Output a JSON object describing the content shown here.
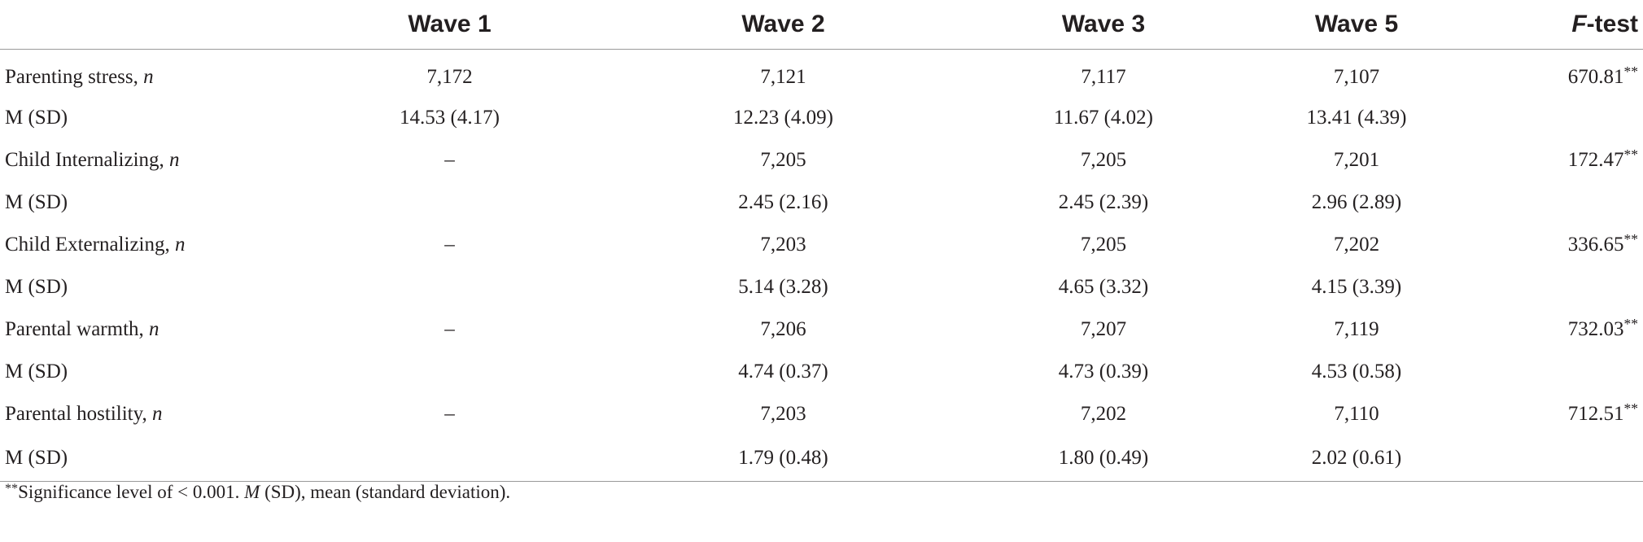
{
  "headers": {
    "wave1": "Wave 1",
    "wave2": "Wave 2",
    "wave3": "Wave 3",
    "wave5": "Wave 5",
    "ftest_italic": "F",
    "ftest_rest": "-test"
  },
  "rows": [
    {
      "label": "Parenting stress, ",
      "label_italic": "n",
      "wave1": "7,172",
      "wave2": "7,121",
      "wave3": "7,117",
      "wave5": "7,107",
      "ftest": "670.81",
      "ftest_sup": "**"
    },
    {
      "label": "M (SD)",
      "label_italic": "",
      "wave1": "14.53 (4.17)",
      "wave2": "12.23 (4.09)",
      "wave3": "11.67 (4.02)",
      "wave5": "13.41 (4.39)",
      "ftest": "",
      "ftest_sup": ""
    },
    {
      "label": "Child Internalizing, ",
      "label_italic": "n",
      "wave1": "–",
      "wave2": "7,205",
      "wave3": "7,205",
      "wave5": "7,201",
      "ftest": "172.47",
      "ftest_sup": "**"
    },
    {
      "label": "M (SD)",
      "label_italic": "",
      "wave1": "",
      "wave2": "2.45 (2.16)",
      "wave3": "2.45 (2.39)",
      "wave5": "2.96 (2.89)",
      "ftest": "",
      "ftest_sup": ""
    },
    {
      "label": "Child Externalizing, ",
      "label_italic": "n",
      "wave1": "–",
      "wave2": "7,203",
      "wave3": "7,205",
      "wave5": "7,202",
      "ftest": "336.65",
      "ftest_sup": "**"
    },
    {
      "label": "M (SD)",
      "label_italic": "",
      "wave1": "",
      "wave2": "5.14 (3.28)",
      "wave3": "4.65 (3.32)",
      "wave5": "4.15 (3.39)",
      "ftest": "",
      "ftest_sup": ""
    },
    {
      "label": "Parental warmth, ",
      "label_italic": "n",
      "wave1": "–",
      "wave2": "7,206",
      "wave3": "7,207",
      "wave5": "7,119",
      "ftest": "732.03",
      "ftest_sup": "**"
    },
    {
      "label": "M (SD)",
      "label_italic": "",
      "wave1": "",
      "wave2": "4.74 (0.37)",
      "wave3": "4.73 (0.39)",
      "wave5": "4.53 (0.58)",
      "ftest": "",
      "ftest_sup": ""
    },
    {
      "label": "Parental hostility, ",
      "label_italic": "n",
      "wave1": "–",
      "wave2": "7,203",
      "wave3": "7,202",
      "wave5": "7,110",
      "ftest": "712.51",
      "ftest_sup": "**"
    },
    {
      "label": "M (SD)",
      "label_italic": "",
      "wave1": "",
      "wave2": "1.79 (0.48)",
      "wave3": "1.80 (0.49)",
      "wave5": "2.02 (0.61)",
      "ftest": "",
      "ftest_sup": ""
    }
  ],
  "footnote": {
    "sup": "**",
    "text1": "Significance level of < 0.001. ",
    "italic": "M",
    "text2": " (SD), mean (standard deviation)."
  }
}
